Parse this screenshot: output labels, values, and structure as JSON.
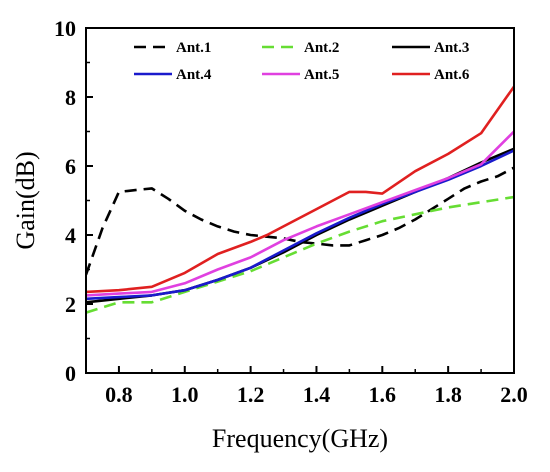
{
  "chart_data": {
    "type": "line",
    "xlabel": "Frequency(GHz)",
    "ylabel": "Gain(dB)",
    "xlim": [
      0.7,
      2.0
    ],
    "ylim": [
      0,
      10
    ],
    "xticks": [
      0.8,
      1.0,
      1.2,
      1.4,
      1.6,
      1.8,
      2.0
    ],
    "yticks": [
      0,
      2,
      4,
      6,
      8,
      10
    ],
    "x_tick_labels": [
      "0.8",
      "1.0",
      "1.2",
      "1.4",
      "1.6",
      "1.8",
      "2.0"
    ],
    "y_tick_labels": [
      "0",
      "2",
      "4",
      "6",
      "8",
      "10"
    ],
    "grid": false,
    "legend_position": "top",
    "series": [
      {
        "name": "Ant.1",
        "color": "#000000",
        "dash": "dashed",
        "x": [
          0.7,
          0.75,
          0.8,
          0.85,
          0.9,
          0.95,
          1.0,
          1.05,
          1.1,
          1.15,
          1.2,
          1.25,
          1.3,
          1.35,
          1.4,
          1.45,
          1.5,
          1.55,
          1.6,
          1.65,
          1.7,
          1.75,
          1.8,
          1.85,
          1.9,
          1.95,
          2.0
        ],
        "y": [
          2.85,
          4.2,
          5.25,
          5.3,
          5.35,
          5.05,
          4.7,
          4.45,
          4.25,
          4.1,
          4.0,
          3.95,
          3.9,
          3.8,
          3.75,
          3.7,
          3.7,
          3.85,
          4.0,
          4.2,
          4.45,
          4.75,
          5.05,
          5.35,
          5.55,
          5.7,
          5.95
        ]
      },
      {
        "name": "Ant.2",
        "color": "#66dd33",
        "dash": "dashed",
        "x": [
          0.7,
          0.8,
          0.9,
          1.0,
          1.1,
          1.2,
          1.3,
          1.4,
          1.5,
          1.6,
          1.7,
          1.8,
          1.9,
          2.0
        ],
        "y": [
          1.75,
          2.05,
          2.05,
          2.35,
          2.65,
          2.95,
          3.35,
          3.75,
          4.1,
          4.4,
          4.6,
          4.8,
          4.95,
          5.1
        ]
      },
      {
        "name": "Ant.3",
        "color": "#000000",
        "dash": "solid",
        "x": [
          0.7,
          0.8,
          0.9,
          1.0,
          1.1,
          1.2,
          1.3,
          1.4,
          1.5,
          1.6,
          1.7,
          1.8,
          1.9,
          2.0
        ],
        "y": [
          2.05,
          2.15,
          2.25,
          2.4,
          2.7,
          3.05,
          3.5,
          4.0,
          4.45,
          4.85,
          5.25,
          5.65,
          6.1,
          6.5
        ]
      },
      {
        "name": "Ant.4",
        "color": "#1a1acc",
        "dash": "solid",
        "x": [
          0.7,
          0.8,
          0.9,
          1.0,
          1.1,
          1.2,
          1.3,
          1.4,
          1.5,
          1.6,
          1.7,
          1.8,
          1.9,
          2.0
        ],
        "y": [
          2.15,
          2.2,
          2.25,
          2.4,
          2.7,
          3.05,
          3.55,
          4.05,
          4.5,
          4.9,
          5.25,
          5.6,
          6.0,
          6.45
        ]
      },
      {
        "name": "Ant.5",
        "color": "#e040e0",
        "dash": "solid",
        "x": [
          0.7,
          0.8,
          0.9,
          1.0,
          1.1,
          1.2,
          1.3,
          1.4,
          1.5,
          1.6,
          1.7,
          1.8,
          1.9,
          2.0
        ],
        "y": [
          2.25,
          2.3,
          2.35,
          2.6,
          3.0,
          3.35,
          3.85,
          4.25,
          4.6,
          4.95,
          5.3,
          5.65,
          6.05,
          7.0
        ]
      },
      {
        "name": "Ant.6",
        "color": "#e02020",
        "dash": "solid",
        "x": [
          0.7,
          0.8,
          0.9,
          1.0,
          1.1,
          1.2,
          1.25,
          1.3,
          1.4,
          1.5,
          1.55,
          1.6,
          1.7,
          1.8,
          1.9,
          2.0
        ],
        "y": [
          2.35,
          2.4,
          2.5,
          2.9,
          3.45,
          3.8,
          4.0,
          4.25,
          4.75,
          5.25,
          5.25,
          5.2,
          5.85,
          6.35,
          6.95,
          8.3
        ]
      }
    ]
  }
}
